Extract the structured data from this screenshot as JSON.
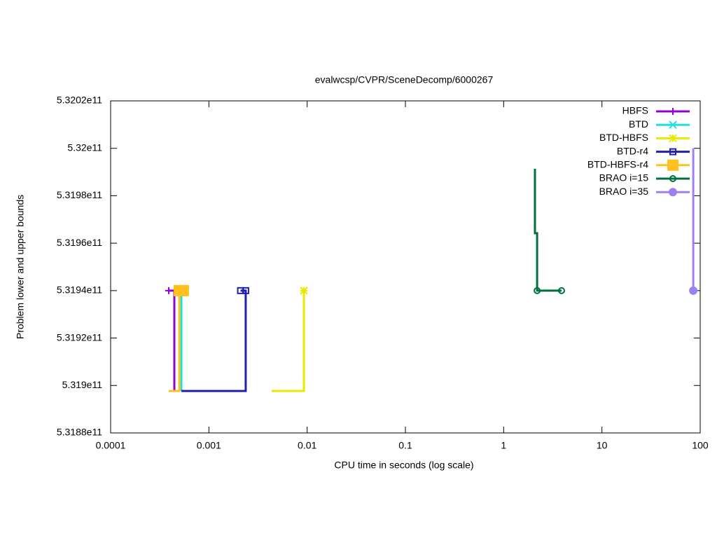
{
  "chart_data": {
    "type": "line",
    "title": "evalwcsp/CVPR/SceneDecomp/6000267",
    "xlabel": "CPU time in seconds (log scale)",
    "ylabel": "Problem lower and upper bounds",
    "xscale": "log",
    "xlim": [
      0.0001,
      100
    ],
    "xticks": [
      0.0001,
      0.001,
      0.01,
      0.1,
      1,
      10,
      100
    ],
    "ylim": [
      531880000000,
      532020000000
    ],
    "yticks": [
      {
        "value": 531880000000,
        "label": "5.3188e11"
      },
      {
        "value": 531900000000,
        "label": "5.319e11"
      },
      {
        "value": 531920000000,
        "label": "5.3192e11"
      },
      {
        "value": 531940000000,
        "label": "5.3194e11"
      },
      {
        "value": 531960000000,
        "label": "5.3196e11"
      },
      {
        "value": 531980000000,
        "label": "5.3198e11"
      },
      {
        "value": 532000000000,
        "label": "5.32e11"
      },
      {
        "value": 532020000000,
        "label": "5.3202e11"
      }
    ],
    "legend": "top-right",
    "series": [
      {
        "name": "HBFS",
        "color": "#9400d3",
        "marker": "plus",
        "x": [
          0.000445,
          0.000445,
          0.00039
        ],
        "values": [
          531897700000,
          531940000000,
          531940000000
        ]
      },
      {
        "name": "BTD",
        "color": "#20e0e0",
        "marker": "cross",
        "x": [
          0.000525,
          0.000525
        ],
        "values": [
          531897700000,
          531940000000
        ]
      },
      {
        "name": "BTD-HBFS",
        "color": "#e8e800",
        "marker": "star",
        "x": [
          0.00435,
          0.00927,
          0.00927
        ],
        "values": [
          531897700000,
          531897700000,
          531940000000
        ]
      },
      {
        "name": "BTD-r4",
        "color": "#2020b0",
        "marker": "square-open",
        "x": [
          0.000525,
          0.00237,
          0.00237,
          0.0021
        ],
        "values": [
          531897700000,
          531897700000,
          531940000000,
          531940000000
        ]
      },
      {
        "name": "BTD-HBFS-r4",
        "color": "#ffc020",
        "marker": "square",
        "x": [
          0.00039,
          0.0005,
          0.0005,
          0.00055
        ],
        "values": [
          531897700000,
          531897700000,
          531940000000,
          531940000000
        ]
      },
      {
        "name": "BRAO i=15",
        "color": "#007040",
        "marker": "circle-open",
        "x": [
          2.08,
          2.08,
          2.19,
          2.19,
          3.88
        ],
        "values": [
          531991400000,
          531964200000,
          531964200000,
          531940000000,
          531940000000
        ]
      },
      {
        "name": "BRAO i=35",
        "color": "#a080f0",
        "marker": "circle",
        "x": [
          85,
          85
        ],
        "values": [
          532000000000,
          531940000000
        ]
      }
    ]
  }
}
